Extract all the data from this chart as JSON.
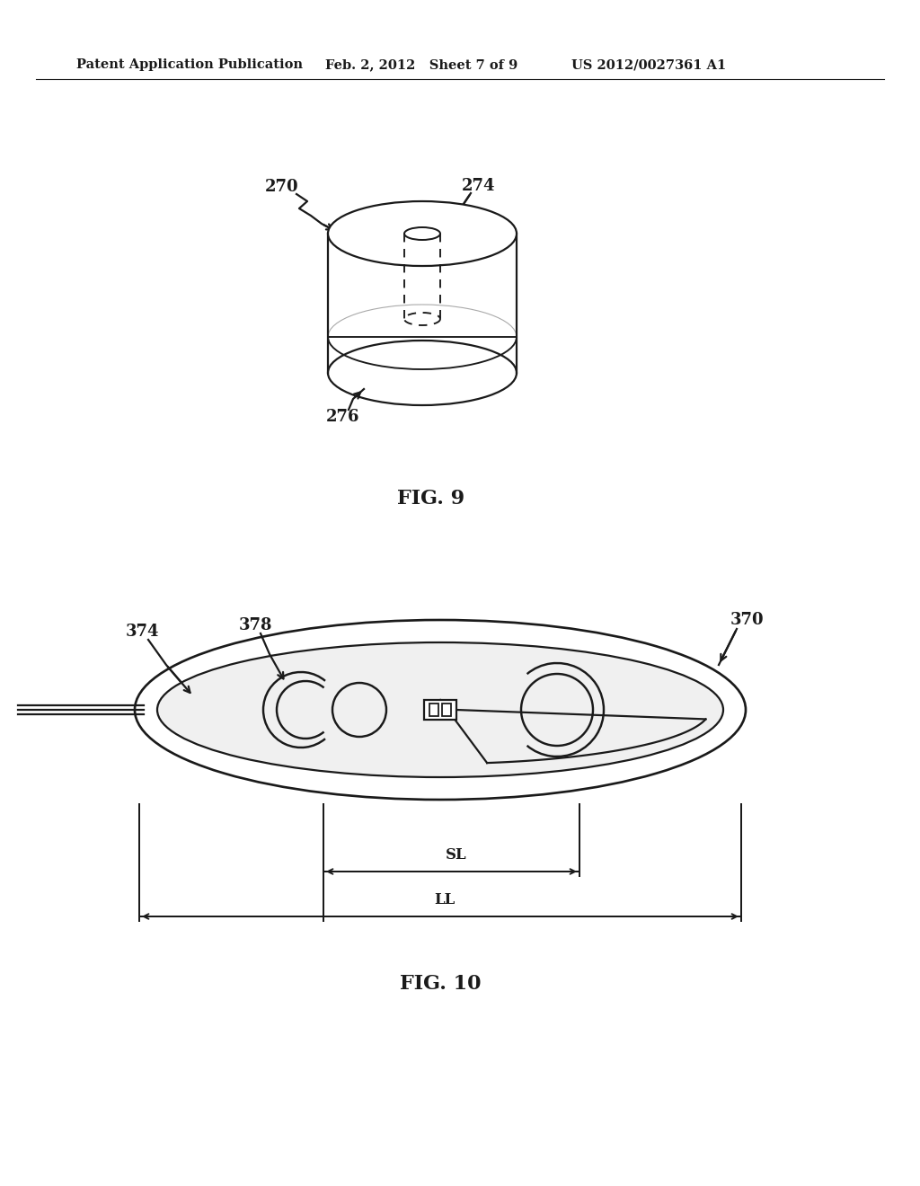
{
  "bg_color": "#ffffff",
  "lc": "#1a1a1a",
  "header_left": "Patent Application Publication",
  "header_mid": "Feb. 2, 2012   Sheet 7 of 9",
  "header_right": "US 2012/0027361 A1",
  "fig9_label": "FIG. 9",
  "fig10_label": "FIG. 10",
  "label_270": "270",
  "label_274": "274",
  "label_276": "276",
  "label_370": "370",
  "label_374": "374",
  "label_378": "378",
  "label_SL": "SL",
  "label_LL": "LL"
}
